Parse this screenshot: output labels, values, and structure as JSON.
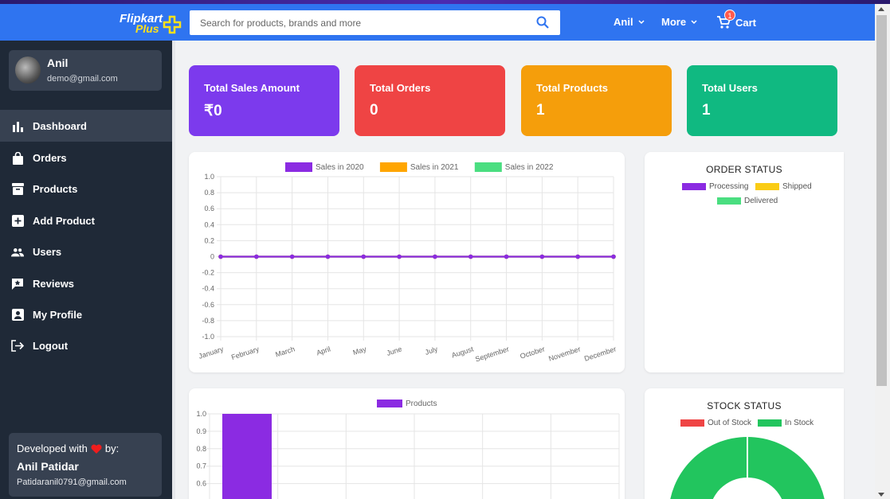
{
  "header": {
    "logo_main": "Flipkart",
    "logo_sub": "Plus",
    "search_placeholder": "Search for products, brands and more",
    "user_label": "Anil",
    "more_label": "More",
    "cart_label": "Cart",
    "cart_count": "1",
    "brand_color": "#2f74f0"
  },
  "sidebar": {
    "profile": {
      "name": "Anil",
      "email": "demo@gmail.com"
    },
    "items": [
      {
        "label": "Dashboard",
        "icon": "bar-chart-icon",
        "active": true
      },
      {
        "label": "Orders",
        "icon": "shopping-bag-icon"
      },
      {
        "label": "Products",
        "icon": "inventory-icon"
      },
      {
        "label": "Add Product",
        "icon": "add-box-icon"
      },
      {
        "label": "Users",
        "icon": "group-icon"
      },
      {
        "label": "Reviews",
        "icon": "review-icon"
      },
      {
        "label": "My Profile",
        "icon": "account-box-icon"
      },
      {
        "label": "Logout",
        "icon": "logout-icon"
      }
    ],
    "footer": {
      "developed_text": "Developed with",
      "by_text": "by:",
      "author": "Anil Patidar",
      "author_email": "Patidaranil0791@gmail.com"
    }
  },
  "stats": [
    {
      "title": "Total Sales Amount",
      "value": "₹0",
      "color": "#7c3aed"
    },
    {
      "title": "Total Orders",
      "value": "0",
      "color": "#ef4444"
    },
    {
      "title": "Total Products",
      "value": "1",
      "color": "#f59e0b"
    },
    {
      "title": "Total Users",
      "value": "1",
      "color": "#10b981"
    }
  ],
  "chart_data": [
    {
      "type": "line",
      "categories": [
        "January",
        "February",
        "March",
        "April",
        "May",
        "June",
        "July",
        "August",
        "September",
        "October",
        "November",
        "December"
      ],
      "series": [
        {
          "name": "Sales in 2020",
          "color": "#8b2be2",
          "values": [
            0,
            0,
            0,
            0,
            0,
            0,
            0,
            0,
            0,
            0,
            0,
            0
          ]
        },
        {
          "name": "Sales in 2021",
          "color": "#ffa500",
          "values": [
            0,
            0,
            0,
            0,
            0,
            0,
            0,
            0,
            0,
            0,
            0,
            0
          ]
        },
        {
          "name": "Sales in 2022",
          "color": "#4ade80",
          "values": [
            0,
            0,
            0,
            0,
            0,
            0,
            0,
            0,
            0,
            0,
            0,
            0
          ]
        }
      ],
      "yticks": [
        "1.0",
        "0.8",
        "0.6",
        "0.4",
        "0.2",
        "0",
        "-0.2",
        "-0.4",
        "-0.6",
        "-0.8",
        "-1.0"
      ],
      "ylim": [
        -1,
        1
      ],
      "legend": "top",
      "grid": true
    },
    {
      "type": "bar",
      "series": [
        {
          "name": "Products",
          "color": "#8b2be2",
          "values": [
            1
          ]
        }
      ],
      "yticks": [
        "1.0",
        "0.9",
        "0.8",
        "0.7",
        "0.6"
      ],
      "ylim_visible": [
        0.5,
        1.0
      ],
      "legend": "top",
      "grid": true
    },
    {
      "type": "pie",
      "title": "ORDER STATUS",
      "labels": [
        "Processing",
        "Shipped",
        "Delivered"
      ],
      "colors": [
        "#8b2be2",
        "#facc15",
        "#4ade80"
      ],
      "values": [
        0,
        0,
        0
      ]
    },
    {
      "type": "pie",
      "title": "STOCK STATUS",
      "labels": [
        "Out of Stock",
        "In Stock"
      ],
      "colors": [
        "#ef4444",
        "#22c55e"
      ],
      "values": [
        0,
        1
      ]
    }
  ]
}
